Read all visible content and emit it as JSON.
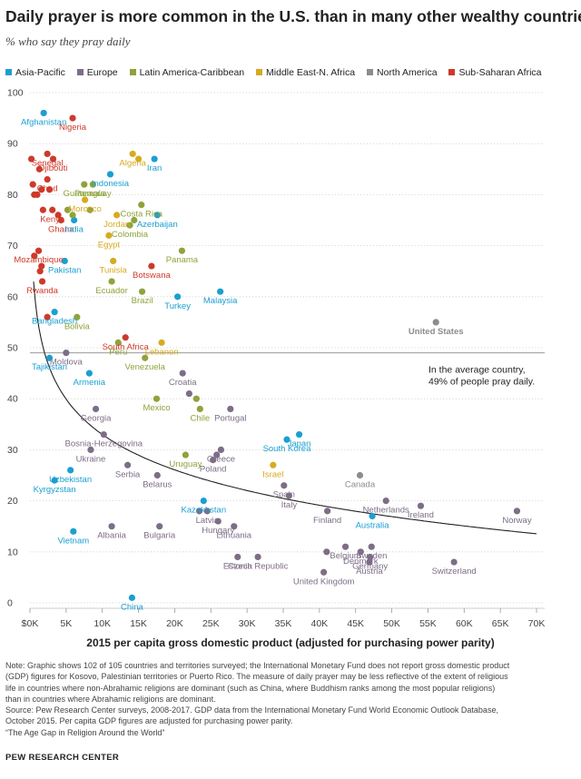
{
  "title": "Daily prayer is more common in the U.S. than in many other wealthy countries",
  "subtitle": "% who say they pray daily",
  "legend": [
    {
      "name": "Asia-Pacific",
      "color": "#1b9fd1"
    },
    {
      "name": "Europe",
      "color": "#7d6d87"
    },
    {
      "name": "Latin America-Caribbean",
      "color": "#8ea33b"
    },
    {
      "name": "Middle East-N. Africa",
      "color": "#d6ab1f"
    },
    {
      "name": "North America",
      "color": "#8c8c8c"
    },
    {
      "name": "Sub-Saharan Africa",
      "color": "#cd3a2b"
    }
  ],
  "annotation": [
    "In the average country,",
    "49% of people pray daily."
  ],
  "note_lines": [
    "Note: Graphic shows 102 of 105 countries and territories surveyed; the International Monetary Fund does not report gross domestic product",
    "(GDP) figures for Kosovo, Palestinian territories or Puerto Rico. The measure of daily prayer may be less reflective of the extent of religious",
    "life in countries where non-Abrahamic religions are dominant (such as China, where Buddhism ranks among the most popular religions)",
    "than in countries where Abrahamic religions are dominant.",
    "Source: Pew Research Center surveys, 2008-2017. GDP data from the International Monetary Fund World Economic Outlook Database,",
    "October 2015. Per capita GDP figures are adjusted for purchasing power parity.",
    "“The Age Gap in Religion Around the World”"
  ],
  "credit": "PEW RESEARCH CENTER",
  "chart_data": {
    "type": "scatter",
    "xlabel": "2015 per capita gross domestic product (adjusted for purchasing power parity)",
    "ylabel": "",
    "xlim": [
      0,
      70000
    ],
    "ylim": [
      0,
      100
    ],
    "x_ticks": [
      0,
      5000,
      10000,
      15000,
      20000,
      25000,
      30000,
      35000,
      40000,
      45000,
      50000,
      55000,
      60000,
      65000,
      70000
    ],
    "x_tick_labels": [
      "$0K",
      "5K",
      "10K",
      "15K",
      "20K",
      "25K",
      "30K",
      "35K",
      "40K",
      "45K",
      "50K",
      "55K",
      "60K",
      "65K",
      "70K"
    ],
    "y_ticks": [
      0,
      10,
      20,
      30,
      40,
      50,
      60,
      70,
      80,
      90,
      100
    ],
    "y_tick_labels": [
      "0",
      "10",
      "20",
      "30",
      "40",
      "50",
      "60",
      "70",
      "80",
      "90",
      "100"
    ],
    "grid": "horizontal-dotted",
    "average_line": 49,
    "trendline": "logarithmic",
    "regions": [
      "Asia-Pacific",
      "Europe",
      "Latin America-Caribbean",
      "Middle East-N. Africa",
      "North America",
      "Sub-Saharan Africa"
    ],
    "points": [
      {
        "label": "Afghanistan",
        "region": "Asia-Pacific",
        "x": 1900,
        "y": 96
      },
      {
        "label": "Nigeria",
        "region": "Sub-Saharan Africa",
        "x": 5900,
        "y": 95
      },
      {
        "label": "Senegal",
        "region": "Sub-Saharan Africa",
        "x": 2400,
        "y": 88
      },
      {
        "label": "Djibouti",
        "region": "Sub-Saharan Africa",
        "x": 3200,
        "y": 87
      },
      {
        "label": "Algeria",
        "region": "Middle East-N. Africa",
        "x": 14200,
        "y": 88
      },
      {
        "label": "",
        "region": "Middle East-N. Africa",
        "x": 15000,
        "y": 87
      },
      {
        "label": "Iran",
        "region": "Asia-Pacific",
        "x": 17200,
        "y": 87
      },
      {
        "label": "Chad",
        "region": "Sub-Saharan Africa",
        "x": 2400,
        "y": 83
      },
      {
        "label": "Guatemala",
        "region": "Latin America-Caribbean",
        "x": 7500,
        "y": 82
      },
      {
        "label": "Indonesia",
        "region": "Asia-Pacific",
        "x": 11100,
        "y": 84
      },
      {
        "label": "Paraguay",
        "region": "Latin America-Caribbean",
        "x": 8700,
        "y": 82
      },
      {
        "label": "Morocco",
        "region": "Middle East-N. Africa",
        "x": 7600,
        "y": 79
      },
      {
        "label": "Costa Rica",
        "region": "Latin America-Caribbean",
        "x": 15400,
        "y": 78
      },
      {
        "label": "Kenya",
        "region": "Sub-Saharan Africa",
        "x": 3100,
        "y": 77
      },
      {
        "label": "Jordan",
        "region": "Middle East-N. Africa",
        "x": 12000,
        "y": 76
      },
      {
        "label": "Azerbaijan",
        "region": "Asia-Pacific",
        "x": 17600,
        "y": 76
      },
      {
        "label": "Ghana",
        "region": "Sub-Saharan Africa",
        "x": 4300,
        "y": 75
      },
      {
        "label": "India",
        "region": "Asia-Pacific",
        "x": 6100,
        "y": 75
      },
      {
        "label": "Colombia",
        "region": "Latin America-Caribbean",
        "x": 13800,
        "y": 74
      },
      {
        "label": "Egypt",
        "region": "Middle East-N. Africa",
        "x": 10900,
        "y": 72
      },
      {
        "label": "Mozambique",
        "region": "Sub-Saharan Africa",
        "x": 1200,
        "y": 69
      },
      {
        "label": "Panama",
        "region": "Latin America-Caribbean",
        "x": 21000,
        "y": 69
      },
      {
        "label": "Tunisia",
        "region": "Middle East-N. Africa",
        "x": 11500,
        "y": 67
      },
      {
        "label": "Pakistan",
        "region": "Asia-Pacific",
        "x": 4800,
        "y": 67
      },
      {
        "label": "Botswana",
        "region": "Sub-Saharan Africa",
        "x": 16800,
        "y": 66
      },
      {
        "label": "Ecuador",
        "region": "Latin America-Caribbean",
        "x": 11300,
        "y": 63
      },
      {
        "label": "Rwanda",
        "region": "Sub-Saharan Africa",
        "x": 1700,
        "y": 63
      },
      {
        "label": "Brazil",
        "region": "Latin America-Caribbean",
        "x": 15500,
        "y": 61
      },
      {
        "label": "Malaysia",
        "region": "Asia-Pacific",
        "x": 26300,
        "y": 61
      },
      {
        "label": "Turkey",
        "region": "Asia-Pacific",
        "x": 20400,
        "y": 60
      },
      {
        "label": "Bangladesh",
        "region": "Asia-Pacific",
        "x": 3400,
        "y": 57
      },
      {
        "label": "Bolivia",
        "region": "Latin America-Caribbean",
        "x": 6500,
        "y": 56
      },
      {
        "label": "United States",
        "region": "North America",
        "x": 56100,
        "y": 55
      },
      {
        "label": "South Africa",
        "region": "Sub-Saharan Africa",
        "x": 13200,
        "y": 52
      },
      {
        "label": "Peru",
        "region": "Latin America-Caribbean",
        "x": 12200,
        "y": 51
      },
      {
        "label": "Lebanon",
        "region": "Middle East-N. Africa",
        "x": 18200,
        "y": 51
      },
      {
        "label": "Moldova",
        "region": "Europe",
        "x": 5000,
        "y": 49
      },
      {
        "label": "Tajikistan",
        "region": "Asia-Pacific",
        "x": 2700,
        "y": 48
      },
      {
        "label": "Venezuela",
        "region": "Latin America-Caribbean",
        "x": 15900,
        "y": 48
      },
      {
        "label": "Armenia",
        "region": "Asia-Pacific",
        "x": 8200,
        "y": 45
      },
      {
        "label": "Croatia",
        "region": "Europe",
        "x": 21100,
        "y": 45
      },
      {
        "label": "Mexico",
        "region": "Latin America-Caribbean",
        "x": 17500,
        "y": 40
      },
      {
        "label": "",
        "region": "Europe",
        "x": 22000,
        "y": 41
      },
      {
        "label": "",
        "region": "Latin America-Caribbean",
        "x": 23000,
        "y": 40
      },
      {
        "label": "Chile",
        "region": "Latin America-Caribbean",
        "x": 23500,
        "y": 38
      },
      {
        "label": "Georgia",
        "region": "Europe",
        "x": 9100,
        "y": 38
      },
      {
        "label": "Portugal",
        "region": "Europe",
        "x": 27700,
        "y": 38
      },
      {
        "label": "Bosnia-Herzegovina",
        "region": "Europe",
        "x": 10200,
        "y": 33
      },
      {
        "label": "Japan",
        "region": "Asia-Pacific",
        "x": 37200,
        "y": 33
      },
      {
        "label": "South Korea",
        "region": "Asia-Pacific",
        "x": 35500,
        "y": 32
      },
      {
        "label": "Greece",
        "region": "Europe",
        "x": 26400,
        "y": 30
      },
      {
        "label": "Ukraine",
        "region": "Europe",
        "x": 8400,
        "y": 30
      },
      {
        "label": "Poland",
        "region": "Europe",
        "x": 25300,
        "y": 28
      },
      {
        "label": "",
        "region": "Europe",
        "x": 25800,
        "y": 29
      },
      {
        "label": "Uruguay",
        "region": "Latin America-Caribbean",
        "x": 21500,
        "y": 29
      },
      {
        "label": "Israel",
        "region": "Middle East-N. Africa",
        "x": 33600,
        "y": 27
      },
      {
        "label": "Serbia",
        "region": "Europe",
        "x": 13500,
        "y": 27
      },
      {
        "label": "Uzbekistan",
        "region": "Asia-Pacific",
        "x": 5600,
        "y": 26
      },
      {
        "label": "Belarus",
        "region": "Europe",
        "x": 17600,
        "y": 25
      },
      {
        "label": "Canada",
        "region": "North America",
        "x": 45600,
        "y": 25
      },
      {
        "label": "Kyrgyzstan",
        "region": "Asia-Pacific",
        "x": 3400,
        "y": 24
      },
      {
        "label": "Spain",
        "region": "Europe",
        "x": 35100,
        "y": 23
      },
      {
        "label": "Italy",
        "region": "Europe",
        "x": 35800,
        "y": 21
      },
      {
        "label": "Kazakhstan",
        "region": "Asia-Pacific",
        "x": 24000,
        "y": 20
      },
      {
        "label": "Netherlands",
        "region": "Europe",
        "x": 49200,
        "y": 20
      },
      {
        "label": "Latvia",
        "region": "Europe",
        "x": 24500,
        "y": 18
      },
      {
        "label": "",
        "region": "Europe",
        "x": 23400,
        "y": 18
      },
      {
        "label": "Hungary",
        "region": "Europe",
        "x": 26000,
        "y": 16
      },
      {
        "label": "Finland",
        "region": "Europe",
        "x": 41100,
        "y": 18
      },
      {
        "label": "Australia",
        "region": "Asia-Pacific",
        "x": 47300,
        "y": 17
      },
      {
        "label": "Ireland",
        "region": "Europe",
        "x": 54000,
        "y": 19
      },
      {
        "label": "Norway",
        "region": "Europe",
        "x": 67300,
        "y": 18
      },
      {
        "label": "Vietnam",
        "region": "Asia-Pacific",
        "x": 6000,
        "y": 14
      },
      {
        "label": "Albania",
        "region": "Europe",
        "x": 11300,
        "y": 15
      },
      {
        "label": "Bulgaria",
        "region": "Europe",
        "x": 17900,
        "y": 15
      },
      {
        "label": "Lithuania",
        "region": "Europe",
        "x": 28200,
        "y": 15
      },
      {
        "label": "Belgium",
        "region": "Europe",
        "x": 43600,
        "y": 11
      },
      {
        "label": "Sweden",
        "region": "Europe",
        "x": 47200,
        "y": 11
      },
      {
        "label": "",
        "region": "Europe",
        "x": 41000,
        "y": 10
      },
      {
        "label": "Denmark",
        "region": "Europe",
        "x": 45700,
        "y": 10
      },
      {
        "label": "Germany",
        "region": "Europe",
        "x": 47000,
        "y": 9
      },
      {
        "label": "Estonia",
        "region": "Europe",
        "x": 28700,
        "y": 9
      },
      {
        "label": "Czech Republic",
        "region": "Europe",
        "x": 31500,
        "y": 9
      },
      {
        "label": "Austria",
        "region": "Europe",
        "x": 46900,
        "y": 8
      },
      {
        "label": "Switzerland",
        "region": "Europe",
        "x": 58600,
        "y": 8
      },
      {
        "label": "United Kingdom",
        "region": "Europe",
        "x": 40600,
        "y": 6
      },
      {
        "label": "China",
        "region": "Asia-Pacific",
        "x": 14100,
        "y": 1
      },
      {
        "label": "",
        "region": "Sub-Saharan Africa",
        "x": 200,
        "y": 87
      },
      {
        "label": "",
        "region": "Sub-Saharan Africa",
        "x": 1300,
        "y": 85
      },
      {
        "label": "",
        "region": "Sub-Saharan Africa",
        "x": 1600,
        "y": 81
      },
      {
        "label": "",
        "region": "Sub-Saharan Africa",
        "x": 400,
        "y": 82
      },
      {
        "label": "",
        "region": "Sub-Saharan Africa",
        "x": 600,
        "y": 80
      },
      {
        "label": "",
        "region": "Sub-Saharan Africa",
        "x": 1800,
        "y": 77
      },
      {
        "label": "",
        "region": "Sub-Saharan Africa",
        "x": 2700,
        "y": 81
      },
      {
        "label": "",
        "region": "Sub-Saharan Africa",
        "x": 1000,
        "y": 80
      },
      {
        "label": "",
        "region": "Sub-Saharan Africa",
        "x": 3900,
        "y": 76
      },
      {
        "label": "",
        "region": "Sub-Saharan Africa",
        "x": 600,
        "y": 68
      },
      {
        "label": "",
        "region": "Sub-Saharan Africa",
        "x": 1600,
        "y": 66
      },
      {
        "label": "",
        "region": "Sub-Saharan Africa",
        "x": 1400,
        "y": 65
      },
      {
        "label": "",
        "region": "Sub-Saharan Africa",
        "x": 2400,
        "y": 56
      },
      {
        "label": "",
        "region": "Latin America-Caribbean",
        "x": 5200,
        "y": 77
      },
      {
        "label": "",
        "region": "Latin America-Caribbean",
        "x": 5900,
        "y": 76
      },
      {
        "label": "",
        "region": "Latin America-Caribbean",
        "x": 8300,
        "y": 77
      },
      {
        "label": "",
        "region": "Latin America-Caribbean",
        "x": 14400,
        "y": 75
      }
    ]
  }
}
